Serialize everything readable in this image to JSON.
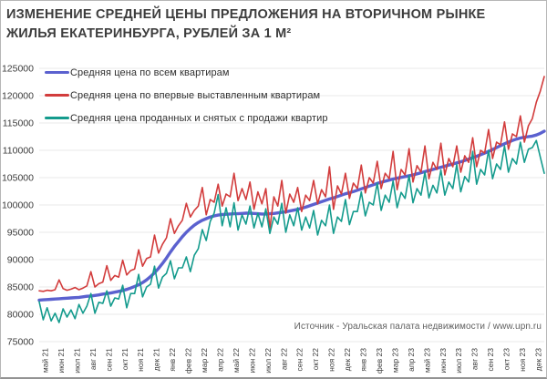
{
  "title_lines": [
    "ИЗМЕНЕНИЕ СРЕДНЕЙ ЦЕНЫ ПРЕДЛОЖЕНИЯ НА ВТОРИЧНОМ РЫНКЕ",
    "ЖИЛЬЯ ЕКАТЕРИНБУРГА, РУБЛЕЙ ЗА 1 М²"
  ],
  "source": "Источник - Уральская палата недвижимости / www.upn.ru",
  "colors": {
    "grid": "#e9e9e9",
    "axis_text": "#3a3a3a",
    "title_text": "#3d3d3d",
    "source_text": "#616161"
  },
  "chart_data": {
    "type": "line",
    "title": "ИЗМЕНЕНИЕ СРЕДНЕЙ ЦЕНЫ ПРЕДЛОЖЕНИЯ НА ВТОРИЧНОМ РЫНКЕ ЖИЛЬЯ ЕКАТЕРИНБУРГА, РУБЛЕЙ ЗА 1 М²",
    "xlabel": "",
    "ylabel": "",
    "ylim": [
      75000,
      125000
    ],
    "ytick_step": 5000,
    "grid": "horizontal",
    "legend_position": "top-left",
    "points_per_month": 4,
    "x_tick_labels": [
      "май 21",
      "июн 21",
      "июл 21",
      "авг 21",
      "сен 21",
      "окт 21",
      "ноя 21",
      "дек 21",
      "янв 22",
      "фев 22",
      "мар 22",
      "апр 22",
      "май 22",
      "июн 22",
      "июл 22",
      "авг 22",
      "сен 22",
      "окт 22",
      "ноя 22",
      "дек 22",
      "янв 23",
      "фев 23",
      "мар 23",
      "апр 23",
      "май 23",
      "июн 23",
      "июл 23",
      "авг 23",
      "сен 23",
      "окт 23",
      "ноя 23",
      "дек 23"
    ],
    "series": [
      {
        "id": "all-apartments",
        "name": "Средняя цена по всем квартирам",
        "color": "#5b61cf",
        "width": 3.4,
        "values": [
          82600,
          82650,
          82700,
          82750,
          82800,
          82850,
          82900,
          82950,
          83000,
          83050,
          83100,
          83200,
          83300,
          83350,
          83450,
          83550,
          83700,
          83800,
          83900,
          84050,
          84200,
          84350,
          84550,
          84800,
          85100,
          85400,
          85800,
          86300,
          86900,
          87600,
          88400,
          89300,
          90300,
          91400,
          92400,
          93300,
          94200,
          95000,
          95700,
          96300,
          96800,
          97200,
          97500,
          97800,
          98000,
          98150,
          98250,
          98300,
          98350,
          98400,
          98400,
          98450,
          98500,
          98500,
          98450,
          98400,
          98350,
          98350,
          98400,
          98450,
          98550,
          98650,
          98750,
          98900,
          99050,
          99200,
          99400,
          99600,
          99850,
          100100,
          100350,
          100600,
          100850,
          101100,
          101300,
          101550,
          101800,
          102050,
          102250,
          102450,
          102700,
          102950,
          103200,
          103450,
          103700,
          103950,
          104150,
          104350,
          104550,
          104750,
          104900,
          105050,
          105200,
          105350,
          105500,
          105700,
          105900,
          106100,
          106300,
          106500,
          106700,
          106900,
          107100,
          107300,
          107500,
          107700,
          107900,
          108150,
          108400,
          108650,
          108900,
          109200,
          109500,
          109800,
          110150,
          110500,
          110850,
          111200,
          111500,
          111800,
          112050,
          112250,
          112400,
          112500,
          112600,
          112800,
          113100,
          113500
        ]
      },
      {
        "id": "first-listed",
        "name": "Средняя цена по впервые выставленным квартирам",
        "color": "#d23c3c",
        "width": 1.6,
        "values": [
          84300,
          84200,
          84400,
          84300,
          84500,
          86300,
          84700,
          84400,
          84600,
          84900,
          84500,
          84800,
          85200,
          87800,
          85000,
          85600,
          85900,
          88900,
          86200,
          87100,
          86800,
          89900,
          87200,
          88000,
          88300,
          91800,
          88800,
          90200,
          90500,
          94500,
          91200,
          92800,
          94000,
          97500,
          94800,
          96200,
          97200,
          100300,
          97800,
          99000,
          99800,
          103200,
          98200,
          101000,
          100500,
          103800,
          99800,
          102000,
          101500,
          105800,
          100800,
          103000,
          101000,
          104200,
          99200,
          102400,
          100200,
          103000,
          95700,
          101500,
          99800,
          104500,
          98500,
          102000,
          100500,
          103200,
          98800,
          101800,
          100800,
          104500,
          100200,
          102800,
          101500,
          107000,
          99200,
          103500,
          102000,
          105800,
          101200,
          104000,
          103000,
          107300,
          102200,
          105000,
          104000,
          108000,
          103000,
          105800,
          104800,
          109800,
          102800,
          106500,
          105500,
          110300,
          104200,
          107200,
          106000,
          110800,
          104800,
          107800,
          106500,
          111300,
          105500,
          108500,
          107000,
          110800,
          106000,
          109000,
          107800,
          112300,
          107000,
          110000,
          109500,
          113800,
          108500,
          111500,
          111000,
          115200,
          110200,
          113000,
          112500,
          116300,
          111500,
          114500,
          115800,
          118800,
          120800,
          123500
        ]
      },
      {
        "id": "sold-withdrawn",
        "name": "Средняя цена проданных и снятых с продажи квартир",
        "color": "#149b8d",
        "width": 1.6,
        "values": [
          82300,
          79000,
          81200,
          78800,
          80200,
          78500,
          81000,
          79500,
          80800,
          79200,
          81800,
          80200,
          81500,
          83800,
          80200,
          82200,
          82000,
          84300,
          81500,
          83000,
          82800,
          85300,
          81200,
          83800,
          83800,
          87300,
          83200,
          85000,
          85500,
          88800,
          84800,
          86800,
          87500,
          89800,
          86500,
          88500,
          88500,
          90500,
          87800,
          90800,
          92000,
          95500,
          93500,
          97000,
          98500,
          101900,
          96200,
          99500,
          96000,
          100400,
          95400,
          98200,
          96500,
          99800,
          95800,
          98500,
          96000,
          99300,
          94800,
          97800,
          96500,
          100300,
          95000,
          98200,
          96200,
          99500,
          95400,
          97800,
          95800,
          99000,
          94500,
          97200,
          96200,
          100000,
          94800,
          97800,
          97000,
          101000,
          96400,
          98800,
          98800,
          102400,
          98000,
          100500,
          100000,
          104000,
          99000,
          101800,
          100500,
          104400,
          99500,
          102300,
          101200,
          105400,
          100400,
          103000,
          101800,
          106000,
          101300,
          103600,
          102200,
          106400,
          101800,
          104200,
          103000,
          107400,
          102400,
          105200,
          104200,
          109800,
          103800,
          106500,
          105500,
          110000,
          104800,
          107500,
          106500,
          110800,
          106000,
          108500,
          107500,
          111500,
          107800,
          110200,
          110500,
          111800,
          108800,
          105800
        ]
      }
    ]
  }
}
